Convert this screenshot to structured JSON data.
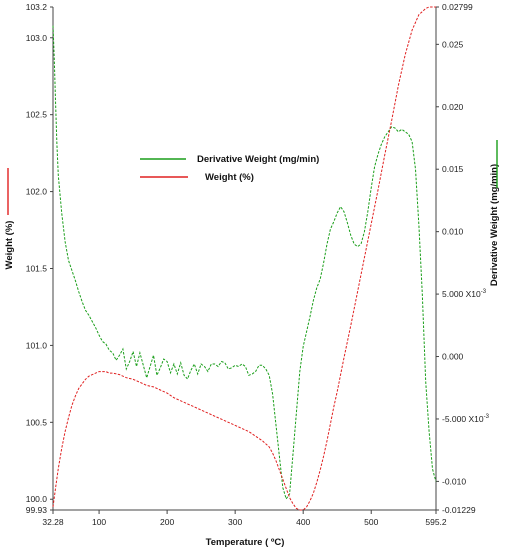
{
  "chart_data": {
    "type": "line",
    "xlabel": "Temperature ( ºC)",
    "ylabel_left": "Weight (%)",
    "ylabel_right": "Derivative Weight (mg/min)",
    "xlim": [
      32.28,
      595.2
    ],
    "ylim_left": [
      99.93,
      103.2
    ],
    "ylim_right": [
      -0.01229,
      0.02799
    ],
    "x_ticks": [
      "32.28",
      "100",
      "200",
      "300",
      "400",
      "500",
      "595.2"
    ],
    "x_tick_values": [
      32.28,
      100,
      200,
      300,
      400,
      500,
      595.2
    ],
    "y_left_ticks": [
      "103.2",
      "103.0",
      "102.5",
      "102.0",
      "101.5",
      "101.0",
      "100.5",
      "100.0",
      "99.93"
    ],
    "y_left_tick_values": [
      103.2,
      103.0,
      102.5,
      102.0,
      101.5,
      101.0,
      100.5,
      100.0,
      99.93
    ],
    "y_right_ticks": [
      {
        "base": "0.02799",
        "exp": ""
      },
      {
        "base": "0.025",
        "exp": ""
      },
      {
        "base": "0.020",
        "exp": ""
      },
      {
        "base": "0.015",
        "exp": ""
      },
      {
        "base": "0.010",
        "exp": ""
      },
      {
        "base": "5.000 X10",
        "exp": "-3"
      },
      {
        "base": "0.000",
        "exp": ""
      },
      {
        "base": "-5.000 X10",
        "exp": "-3"
      },
      {
        "base": "-0.010",
        "exp": ""
      },
      {
        "base": "-0.01229",
        "exp": ""
      }
    ],
    "y_right_tick_values": [
      0.02799,
      0.025,
      0.02,
      0.015,
      0.01,
      0.005,
      0.0,
      -0.005,
      -0.01,
      -0.01229
    ],
    "legend": [
      {
        "label": "Derivative Weight (mg/min)",
        "color": "#1a9e1a"
      },
      {
        "label": "Weight (%)",
        "color": "#e02020"
      }
    ],
    "series": [
      {
        "name": "Derivative Weight (mg/min)",
        "color": "#1a9e1a",
        "axis": "right",
        "x": [
          32.28,
          34,
          36,
          38,
          40,
          45,
          50,
          55,
          60,
          65,
          70,
          75,
          80,
          85,
          90,
          95,
          100,
          105,
          110,
          115,
          120,
          125,
          130,
          135,
          140,
          145,
          150,
          155,
          160,
          165,
          170,
          175,
          180,
          185,
          190,
          195,
          200,
          205,
          210,
          215,
          220,
          225,
          230,
          235,
          240,
          245,
          250,
          255,
          260,
          265,
          270,
          275,
          280,
          285,
          290,
          295,
          300,
          305,
          310,
          315,
          320,
          325,
          330,
          335,
          340,
          345,
          350,
          355,
          360,
          365,
          370,
          375,
          380,
          385,
          390,
          395,
          400,
          405,
          410,
          415,
          420,
          425,
          430,
          435,
          440,
          445,
          450,
          455,
          460,
          465,
          470,
          475,
          480,
          485,
          490,
          495,
          500,
          505,
          510,
          515,
          520,
          525,
          530,
          535,
          540,
          545,
          550,
          555,
          560,
          565,
          570,
          575,
          580,
          585,
          590,
          593,
          595.2
        ],
        "y": [
          0.0265,
          0.024,
          0.0205,
          0.017,
          0.0145,
          0.0115,
          0.0092,
          0.0077,
          0.0069,
          0.0061,
          0.0052,
          0.0044,
          0.0037,
          0.0033,
          0.0028,
          0.0023,
          0.0017,
          0.0012,
          0.001,
          0.0005,
          0.0003,
          -0.0003,
          0.0001,
          0.0006,
          -0.001,
          -0.0004,
          0.0004,
          -0.0008,
          0.0003,
          -0.0007,
          -0.0017,
          -0.0008,
          0.0001,
          -0.0015,
          -0.0009,
          -0.0002,
          -0.0004,
          -0.0013,
          -0.0006,
          -0.0014,
          -0.0005,
          -0.0015,
          -0.0018,
          -0.0011,
          -0.0006,
          -0.0014,
          -0.0006,
          -0.0008,
          -0.0012,
          -0.0006,
          -0.0006,
          -0.0008,
          -0.0004,
          -0.0005,
          -0.001,
          -0.0009,
          -0.0007,
          -0.0008,
          -0.0006,
          -0.0008,
          -0.0015,
          -0.0014,
          -0.0012,
          -0.0007,
          -0.0007,
          -0.001,
          -0.0015,
          -0.003,
          -0.0055,
          -0.008,
          -0.0105,
          -0.0114,
          -0.011,
          -0.0078,
          -0.0045,
          -0.0012,
          0.0008,
          0.002,
          0.0032,
          0.0045,
          0.0055,
          0.0062,
          0.0075,
          0.009,
          0.0102,
          0.0108,
          0.0115,
          0.012,
          0.0116,
          0.0107,
          0.0097,
          0.009,
          0.0088,
          0.009,
          0.01,
          0.0116,
          0.0135,
          0.0152,
          0.0162,
          0.017,
          0.0176,
          0.018,
          0.0184,
          0.0183,
          0.018,
          0.0182,
          0.018,
          0.0178,
          0.0172,
          0.015,
          0.0105,
          0.005,
          -0.002,
          -0.006,
          -0.009,
          -0.0096,
          -0.01
        ]
      },
      {
        "name": "Weight (%)",
        "color": "#e02020",
        "axis": "left",
        "x": [
          32.28,
          36,
          40,
          45,
          50,
          55,
          60,
          65,
          70,
          75,
          80,
          85,
          90,
          95,
          100,
          105,
          110,
          115,
          120,
          130,
          140,
          150,
          160,
          170,
          180,
          190,
          200,
          210,
          220,
          230,
          240,
          250,
          260,
          270,
          280,
          290,
          300,
          310,
          320,
          330,
          340,
          350,
          355,
          360,
          365,
          370,
          375,
          380,
          385,
          390,
          395,
          400,
          405,
          410,
          415,
          420,
          425,
          430,
          435,
          440,
          445,
          450,
          455,
          460,
          470,
          480,
          490,
          500,
          510,
          520,
          530,
          540,
          550,
          560,
          570,
          580,
          585,
          590,
          595.2
        ],
        "y": [
          99.95,
          100.07,
          100.2,
          100.33,
          100.44,
          100.53,
          100.61,
          100.67,
          100.72,
          100.75,
          100.78,
          100.8,
          100.81,
          100.82,
          100.83,
          100.83,
          100.83,
          100.82,
          100.82,
          100.81,
          100.79,
          100.78,
          100.76,
          100.74,
          100.73,
          100.71,
          100.69,
          100.66,
          100.64,
          100.62,
          100.6,
          100.58,
          100.56,
          100.54,
          100.52,
          100.5,
          100.48,
          100.46,
          100.44,
          100.41,
          100.38,
          100.34,
          100.3,
          100.25,
          100.19,
          100.13,
          100.07,
          100.01,
          99.97,
          99.94,
          99.93,
          99.93,
          99.95,
          99.99,
          100.04,
          100.11,
          100.19,
          100.28,
          100.38,
          100.49,
          100.6,
          100.7,
          100.81,
          100.92,
          101.13,
          101.35,
          101.57,
          101.79,
          102.01,
          102.24,
          102.46,
          102.69,
          102.89,
          103.05,
          103.15,
          103.19,
          103.2,
          103.2,
          103.2
        ]
      }
    ],
    "grid": false
  }
}
